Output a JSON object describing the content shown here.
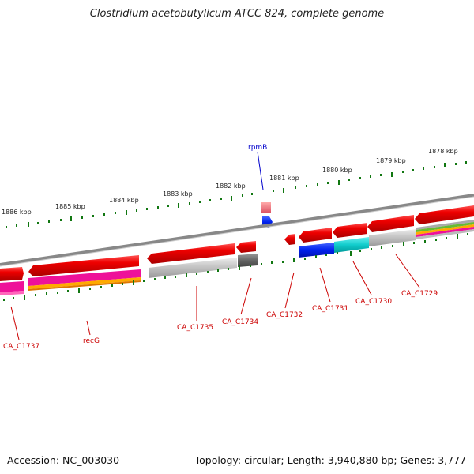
{
  "title": "Clostridium acetobutylicum ATCC 824, complete genome",
  "footer": {
    "accession": "Accession: NC_003030",
    "summary": "Topology: circular; Length: 3,940,880 bp; Genes: 3,777"
  },
  "kbp_labels": [
    {
      "id": "kbp-1886",
      "text": "1886 kbp"
    },
    {
      "id": "kbp-1885",
      "text": "1885 kbp"
    },
    {
      "id": "kbp-1884",
      "text": "1884 kbp"
    },
    {
      "id": "kbp-1883",
      "text": "1883 kbp"
    },
    {
      "id": "kbp-1882",
      "text": "1882 kbp"
    },
    {
      "id": "kbp-1881",
      "text": "1881 kbp"
    },
    {
      "id": "kbp-1880",
      "text": "1880 kbp"
    },
    {
      "id": "kbp-1879",
      "text": "1879 kbp"
    },
    {
      "id": "kbp-1878",
      "text": "1878 kbp"
    }
  ],
  "gene_labels": [
    {
      "id": "rpmB",
      "text": "rpmB",
      "color": "#0000cc"
    },
    {
      "id": "CA_C1737",
      "text": "CA_C1737",
      "color": "#cc0000"
    },
    {
      "id": "recG",
      "text": "recG",
      "color": "#cc0000"
    },
    {
      "id": "CA_C1735",
      "text": "CA_C1735",
      "color": "#cc0000"
    },
    {
      "id": "CA_C1734",
      "text": "CA_C1734",
      "color": "#cc0000"
    },
    {
      "id": "CA_C1732",
      "text": "CA_C1732",
      "color": "#cc0000"
    },
    {
      "id": "CA_C1731",
      "text": "CA_C1731",
      "color": "#cc0000"
    },
    {
      "id": "CA_C1730",
      "text": "CA_C1730",
      "color": "#cc0000"
    },
    {
      "id": "CA_C1729",
      "text": "CA_C1729",
      "color": "#cc0000"
    }
  ],
  "colors": {
    "gene_red": "#ee0000",
    "backbone": "#888888",
    "tick_green": "#117711",
    "rpmB_blue": "#0033ee",
    "cyan": "#11cccc",
    "magenta": "#ee1199",
    "orange": "#ff9900",
    "grey_band": "#bbbbbb",
    "dark_grey": "#666666",
    "pink": "#ee7788"
  }
}
